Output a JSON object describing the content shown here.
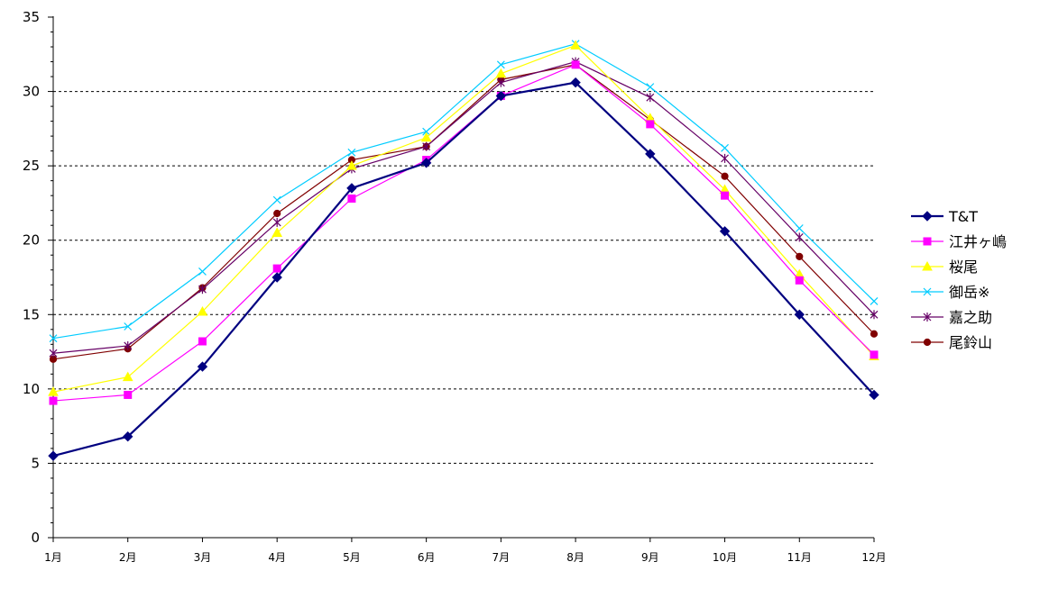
{
  "chart_data": {
    "type": "line",
    "categories": [
      "1月",
      "2月",
      "3月",
      "4月",
      "5月",
      "6月",
      "7月",
      "8月",
      "9月",
      "10月",
      "11月",
      "12月"
    ],
    "ylim": [
      0,
      35
    ],
    "yticks": [
      0,
      5,
      10,
      15,
      20,
      25,
      30,
      35
    ],
    "grid": "horizontal dotted",
    "legend": "right",
    "series": [
      {
        "name": "T&T",
        "color": "#000080",
        "marker": "diamond",
        "values": [
          5.5,
          6.8,
          11.5,
          17.5,
          23.5,
          25.2,
          29.7,
          30.6,
          25.8,
          20.6,
          15.0,
          9.6
        ]
      },
      {
        "name": "江井ヶ嶋",
        "color": "#ff00ff",
        "marker": "square",
        "values": [
          9.2,
          9.6,
          13.2,
          18.1,
          22.8,
          25.4,
          29.7,
          31.8,
          27.8,
          23.0,
          17.3,
          12.3
        ]
      },
      {
        "name": "桜尾",
        "color": "#ffff00",
        "marker": "triangle",
        "values": [
          9.8,
          10.8,
          15.2,
          20.5,
          25.0,
          26.9,
          31.2,
          33.1,
          28.2,
          23.4,
          17.7,
          12.2
        ]
      },
      {
        "name": "御岳※",
        "color": "#00ccff",
        "marker": "x",
        "values": [
          13.4,
          14.2,
          17.9,
          22.7,
          25.9,
          27.3,
          31.8,
          33.2,
          30.3,
          26.2,
          20.8,
          15.9
        ]
      },
      {
        "name": "嘉之助",
        "color": "#660066",
        "marker": "asterisk",
        "values": [
          12.4,
          12.9,
          16.7,
          21.2,
          24.8,
          26.3,
          30.6,
          32.0,
          29.6,
          25.5,
          20.2,
          15.0
        ]
      },
      {
        "name": "尾鈴山",
        "color": "#800000",
        "marker": "circle",
        "values": [
          12.0,
          12.7,
          16.8,
          21.8,
          25.4,
          26.3,
          30.8,
          31.8,
          28.1,
          24.3,
          18.9,
          13.7
        ]
      }
    ]
  }
}
